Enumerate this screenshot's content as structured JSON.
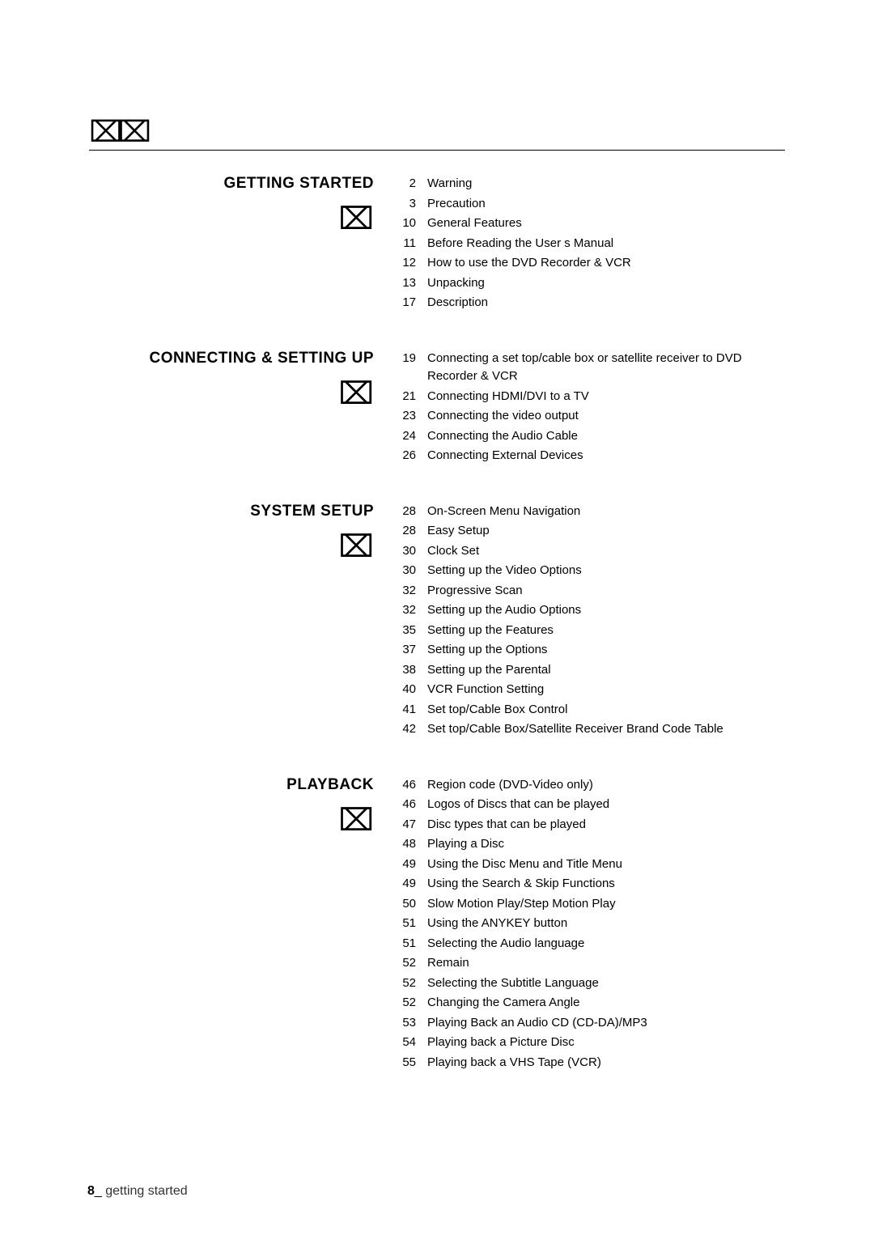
{
  "page": {
    "number": "8",
    "label": "getting started"
  },
  "title_glyph": "⌧⌧",
  "section_glyph": "⌧",
  "colors": {
    "background": "#ffffff",
    "text": "#000000",
    "rule": "#000000"
  },
  "typography": {
    "section_title_fontsize": 19,
    "section_title_weight": "bold",
    "body_fontsize": 15,
    "footer_fontsize": 16,
    "font_family": "Arial, Helvetica, sans-serif"
  },
  "sections": [
    {
      "title": "GETTING STARTED",
      "items": [
        {
          "page": "2",
          "label": "Warning"
        },
        {
          "page": "3",
          "label": "Precaution"
        },
        {
          "page": "10",
          "label": "General Features"
        },
        {
          "page": "11",
          "label": "Before Reading the User s Manual"
        },
        {
          "page": "12",
          "label": "How to use the DVD Recorder & VCR"
        },
        {
          "page": "13",
          "label": "Unpacking"
        },
        {
          "page": "17",
          "label": "Description"
        }
      ]
    },
    {
      "title": "CONNECTING & SETTING UP",
      "items": [
        {
          "page": "19",
          "label": "Connecting a set top/cable box or satellite receiver to DVD Recorder & VCR"
        },
        {
          "page": "21",
          "label": "Connecting HDMI/DVI to a TV"
        },
        {
          "page": "23",
          "label": "Connecting the video output"
        },
        {
          "page": "24",
          "label": "Connecting the Audio Cable"
        },
        {
          "page": "26",
          "label": "Connecting External Devices"
        }
      ]
    },
    {
      "title": "SYSTEM SETUP",
      "items": [
        {
          "page": "28",
          "label": "On-Screen Menu Navigation"
        },
        {
          "page": "28",
          "label": "Easy Setup"
        },
        {
          "page": "30",
          "label": "Clock Set"
        },
        {
          "page": "30",
          "label": "Setting up the Video Options"
        },
        {
          "page": "32",
          "label": "Progressive Scan"
        },
        {
          "page": "32",
          "label": "Setting up the Audio Options"
        },
        {
          "page": "35",
          "label": "Setting up the Features"
        },
        {
          "page": "37",
          "label": "Setting up the Options"
        },
        {
          "page": "38",
          "label": "Setting up the Parental"
        },
        {
          "page": "40",
          "label": "VCR Function Setting"
        },
        {
          "page": "41",
          "label": "Set top/Cable Box Control"
        },
        {
          "page": "42",
          "label": "Set top/Cable Box/Satellite Receiver Brand Code Table"
        }
      ]
    },
    {
      "title": "PLAYBACK",
      "items": [
        {
          "page": "46",
          "label": "Region code (DVD-Video only)"
        },
        {
          "page": "46",
          "label": "Logos of Discs that can be played"
        },
        {
          "page": "47",
          "label": "Disc types that can be played"
        },
        {
          "page": "48",
          "label": "Playing a Disc"
        },
        {
          "page": "49",
          "label": "Using the Disc Menu and Title Menu"
        },
        {
          "page": "49",
          "label": "Using the Search & Skip Functions"
        },
        {
          "page": "50",
          "label": "Slow Motion Play/Step Motion Play"
        },
        {
          "page": "51",
          "label": "Using the ANYKEY button"
        },
        {
          "page": "51",
          "label": "Selecting the Audio language"
        },
        {
          "page": "52",
          "label": "Remain"
        },
        {
          "page": "52",
          "label": "Selecting the Subtitle Language"
        },
        {
          "page": "52",
          "label": "Changing the Camera Angle"
        },
        {
          "page": "53",
          "label": "Playing Back an Audio CD (CD-DA)/MP3"
        },
        {
          "page": "54",
          "label": "Playing back a Picture Disc"
        },
        {
          "page": "55",
          "label": "Playing back a VHS Tape (VCR)"
        }
      ]
    }
  ]
}
